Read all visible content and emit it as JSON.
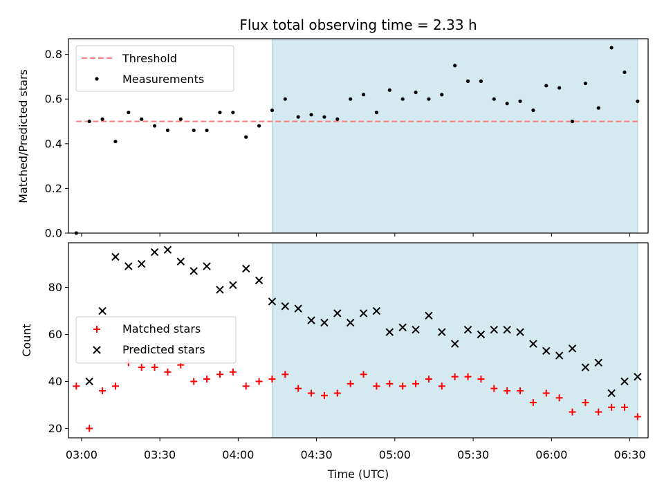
{
  "chart_data": [
    {
      "type": "scatter",
      "title": "Flux total observing time = 2.33 h",
      "xlabel": "",
      "ylabel": "Matched/Predicted stars",
      "ylim": [
        0.0,
        0.87
      ],
      "yticks": [
        "0.0",
        "0.2",
        "0.4",
        "0.6",
        "0.8"
      ],
      "shaded_span": [
        "04:13",
        "06:33"
      ],
      "shade_color": "#d4eaf0",
      "legend_position": "upper-left",
      "legend": [
        {
          "label": "Threshold",
          "marker": "dashed-line",
          "color": "#f77f7f"
        },
        {
          "label": "Measurements",
          "marker": "dot",
          "color": "#000000"
        }
      ],
      "threshold": {
        "value": 0.5,
        "x_start": "02:58",
        "x_end": "06:33",
        "color": "#f77f7f"
      },
      "series": [
        {
          "name": "Measurements",
          "color": "#000000",
          "x": [
            "02:58",
            "03:03",
            "03:08",
            "03:13",
            "03:18",
            "03:23",
            "03:28",
            "03:33",
            "03:38",
            "03:43",
            "03:48",
            "03:53",
            "03:58",
            "04:03",
            "04:08",
            "04:13",
            "04:18",
            "04:23",
            "04:28",
            "04:33",
            "04:38",
            "04:43",
            "04:48",
            "04:53",
            "04:58",
            "05:03",
            "05:08",
            "05:13",
            "05:18",
            "05:23",
            "05:28",
            "05:33",
            "05:38",
            "05:43",
            "05:48",
            "05:53",
            "05:58",
            "06:03",
            "06:08",
            "06:13",
            "06:18",
            "06:23",
            "06:28",
            "06:33"
          ],
          "y": [
            0.0,
            0.5,
            0.51,
            0.41,
            0.54,
            0.51,
            0.48,
            0.46,
            0.51,
            0.46,
            0.46,
            0.54,
            0.54,
            0.43,
            0.48,
            0.55,
            0.6,
            0.52,
            0.53,
            0.52,
            0.51,
            0.6,
            0.62,
            0.54,
            0.64,
            0.6,
            0.63,
            0.6,
            0.62,
            0.75,
            0.68,
            0.68,
            0.6,
            0.58,
            0.59,
            0.55,
            0.66,
            0.65,
            0.5,
            0.67,
            0.56,
            0.83,
            0.72,
            0.59
          ]
        }
      ]
    },
    {
      "type": "scatter",
      "title": "",
      "xlabel": "Time (UTC)",
      "ylabel": "Count",
      "ylim": [
        16,
        99
      ],
      "yticks": [
        "20",
        "40",
        "60",
        "80"
      ],
      "xticks": [
        "03:00",
        "03:30",
        "04:00",
        "04:30",
        "05:00",
        "05:30",
        "06:00",
        "06:30"
      ],
      "shaded_span": [
        "04:13",
        "06:33"
      ],
      "shade_color": "#d4eaf0",
      "legend_position": "center-left",
      "legend": [
        {
          "label": "Matched stars",
          "marker": "plus",
          "color": "#ff0000"
        },
        {
          "label": "Predicted stars",
          "marker": "x",
          "color": "#000000"
        }
      ],
      "series": [
        {
          "name": "Matched stars",
          "color": "#ff0000",
          "x": [
            "02:58",
            "03:03",
            "03:08",
            "03:13",
            "03:18",
            "03:23",
            "03:28",
            "03:33",
            "03:38",
            "03:43",
            "03:48",
            "03:53",
            "03:58",
            "04:03",
            "04:08",
            "04:13",
            "04:18",
            "04:23",
            "04:28",
            "04:33",
            "04:38",
            "04:43",
            "04:48",
            "04:53",
            "04:58",
            "05:03",
            "05:08",
            "05:13",
            "05:18",
            "05:23",
            "05:28",
            "05:33",
            "05:38",
            "05:43",
            "05:48",
            "05:53",
            "05:58",
            "06:03",
            "06:08",
            "06:13",
            "06:18",
            "06:23",
            "06:28",
            "06:33"
          ],
          "y": [
            38,
            20,
            36,
            38,
            48,
            46,
            46,
            44,
            47,
            40,
            41,
            43,
            44,
            38,
            40,
            41,
            43,
            37,
            35,
            34,
            35,
            39,
            43,
            38,
            39,
            38,
            39,
            41,
            38,
            42,
            42,
            41,
            37,
            36,
            36,
            31,
            35,
            33,
            27,
            31,
            27,
            29,
            29,
            25
          ]
        },
        {
          "name": "Predicted stars",
          "color": "#000000",
          "x": [
            "03:03",
            "03:08",
            "03:13",
            "03:18",
            "03:23",
            "03:28",
            "03:33",
            "03:38",
            "03:43",
            "03:48",
            "03:53",
            "03:58",
            "04:03",
            "04:08",
            "04:13",
            "04:18",
            "04:23",
            "04:28",
            "04:33",
            "04:38",
            "04:43",
            "04:48",
            "04:53",
            "04:58",
            "05:03",
            "05:08",
            "05:13",
            "05:18",
            "05:23",
            "05:28",
            "05:33",
            "05:38",
            "05:43",
            "05:48",
            "05:53",
            "05:58",
            "06:03",
            "06:08",
            "06:13",
            "06:18",
            "06:23",
            "06:28",
            "06:33"
          ],
          "y": [
            40,
            70,
            93,
            89,
            90,
            95,
            96,
            91,
            87,
            89,
            79,
            81,
            88,
            83,
            74,
            72,
            71,
            66,
            65,
            69,
            65,
            69,
            70,
            61,
            63,
            62,
            68,
            61,
            56,
            62,
            60,
            62,
            62,
            61,
            56,
            53,
            51,
            54,
            46,
            48,
            35,
            40,
            42
          ]
        }
      ]
    }
  ]
}
